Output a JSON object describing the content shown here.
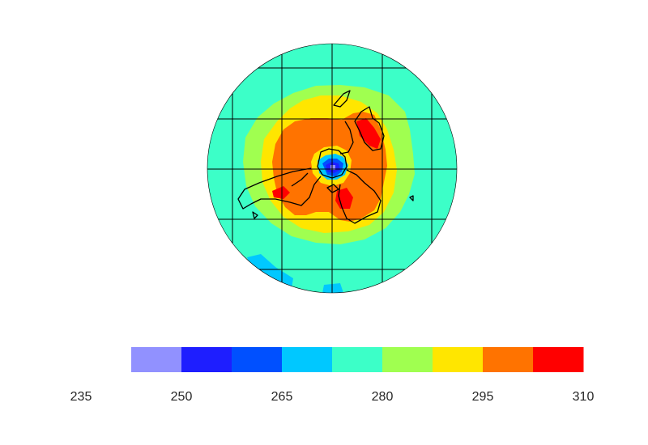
{
  "colorbar": {
    "ticks": [
      "235",
      "250",
      "265",
      "280",
      "295",
      "310"
    ],
    "tick_values": [
      235,
      250,
      265,
      280,
      295,
      310
    ],
    "range": [
      235,
      310
    ],
    "bins": [
      {
        "from": 242.5,
        "to": 250.0,
        "color": "#9191ff"
      },
      {
        "from": 250.0,
        "to": 257.5,
        "color": "#1e1eff"
      },
      {
        "from": 257.5,
        "to": 265.0,
        "color": "#0050ff"
      },
      {
        "from": 265.0,
        "to": 272.5,
        "color": "#00c8ff"
      },
      {
        "from": 272.5,
        "to": 280.0,
        "color": "#3cffc8"
      },
      {
        "from": 280.0,
        "to": 287.5,
        "color": "#a0ff50"
      },
      {
        "from": 287.5,
        "to": 295.0,
        "color": "#ffe600"
      },
      {
        "from": 295.0,
        "to": 302.5,
        "color": "#ff7300"
      },
      {
        "from": 302.5,
        "to": 310.0,
        "color": "#ff0000"
      }
    ]
  },
  "map": {
    "projection": "polar-stereographic",
    "grid": true,
    "coastlines": true,
    "field_colors": {
      "outer": "#3cffc8",
      "ring2": "#a0ff50",
      "ring3": "#ffe600",
      "ring4": "#ff7300",
      "hot": "#ff0000",
      "cold1": "#00c8ff",
      "cold2": "#0050ff",
      "cold3": "#1e1eff",
      "cold4": "#9191ff"
    }
  }
}
